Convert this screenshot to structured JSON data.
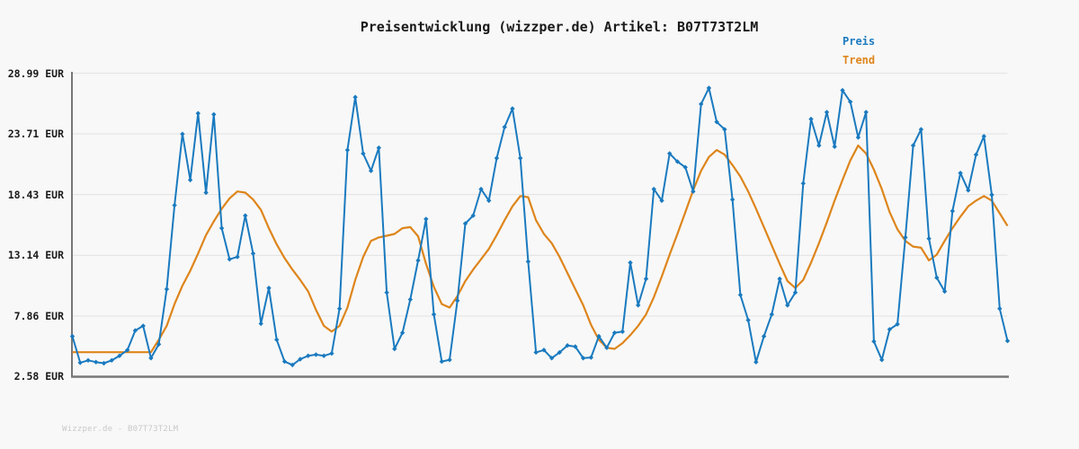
{
  "title": "Preisentwicklung (wizzper.de) Artikel: B07T73T2LM",
  "legend": {
    "preis_label": "Preis",
    "trend_label": "Trend",
    "position": "top-right"
  },
  "watermark": "Wizzper.de - B07T73T2LM",
  "colors": {
    "price_line": "#1a7abf",
    "trend_line": "#de851b",
    "axis": "#777777",
    "grid": "#e5e5e5",
    "text": "#1a1a1a",
    "watermark_text": "#c9c9c9",
    "background": "#f8f8f8"
  },
  "axis": {
    "y_tick_labels": [
      "28.99 EUR",
      "23.71 EUR",
      "18.43 EUR",
      "13.14 EUR",
      "7.86 EUR",
      "2.58 EUR"
    ],
    "y_tick_values": [
      28.99,
      23.71,
      18.43,
      13.14,
      7.86,
      2.58
    ],
    "currency": "EUR"
  },
  "chart_data": {
    "type": "line",
    "title": "Preisentwicklung (wizzper.de) Artikel: B07T73T2LM",
    "xlabel": "",
    "ylabel": "",
    "ylim": [
      2.58,
      28.99
    ],
    "y_ticks": [
      2.58,
      7.86,
      13.14,
      18.43,
      23.71,
      28.99
    ],
    "grid": "horizontal",
    "legend_position": "top-right",
    "x_axis_labels": "none (time axis unlabeled)",
    "series": [
      {
        "name": "Preis",
        "color": "#1a7abf",
        "marker": "diamond",
        "values": [
          6.1,
          3.8,
          4.0,
          3.85,
          3.75,
          4.0,
          4.4,
          4.9,
          6.6,
          7.0,
          4.2,
          5.4,
          10.2,
          17.5,
          23.7,
          19.7,
          25.5,
          18.6,
          25.4,
          15.5,
          12.8,
          13.0,
          16.6,
          13.3,
          7.2,
          10.3,
          5.8,
          3.9,
          3.6,
          4.1,
          4.4,
          4.5,
          4.4,
          4.6,
          8.5,
          22.3,
          26.9,
          22.0,
          20.5,
          22.5,
          9.9,
          5.0,
          6.4,
          9.3,
          12.7,
          16.3,
          8.0,
          3.9,
          4.05,
          9.2,
          15.9,
          16.6,
          18.9,
          17.9,
          21.6,
          24.3,
          25.9,
          21.6,
          12.6,
          4.7,
          4.9,
          4.2,
          4.7,
          5.3,
          5.2,
          4.2,
          4.25,
          6.1,
          5.1,
          6.4,
          6.5,
          12.5,
          8.8,
          11.1,
          18.9,
          17.9,
          22.0,
          21.3,
          20.8,
          18.7,
          26.3,
          27.7,
          24.75,
          24.1,
          18.0,
          9.7,
          7.5,
          3.85,
          6.1,
          8.0,
          11.1,
          8.8,
          9.9,
          19.4,
          25.0,
          22.7,
          25.6,
          22.6,
          27.5,
          26.5,
          23.4,
          25.6,
          5.65,
          4.05,
          6.7,
          7.15,
          14.7,
          22.7,
          24.1,
          14.6,
          11.2,
          10.0,
          17.0,
          20.3,
          18.8,
          21.9,
          23.5,
          18.4,
          8.5,
          5.7
        ]
      },
      {
        "name": "Trend",
        "color": "#de851b",
        "marker": "none",
        "values": [
          4.71,
          4.71,
          4.71,
          4.71,
          4.71,
          4.71,
          4.71,
          4.71,
          4.71,
          4.71,
          4.71,
          5.8,
          7.0,
          8.9,
          10.5,
          11.8,
          13.3,
          14.9,
          16.1,
          17.2,
          18.1,
          18.7,
          18.6,
          18.0,
          17.1,
          15.5,
          14.1,
          12.9,
          11.9,
          11.0,
          10.0,
          8.4,
          7.0,
          6.5,
          7.0,
          8.6,
          11.0,
          13.0,
          14.4,
          14.7,
          14.85,
          15.0,
          15.5,
          15.6,
          14.8,
          12.4,
          10.4,
          8.9,
          8.6,
          9.6,
          10.9,
          11.9,
          12.8,
          13.7,
          14.9,
          16.2,
          17.4,
          18.3,
          18.2,
          16.2,
          15.0,
          14.2,
          13.0,
          11.6,
          10.2,
          8.8,
          7.1,
          5.8,
          5.1,
          5.0,
          5.5,
          6.2,
          7.0,
          8.0,
          9.5,
          11.3,
          13.2,
          15.0,
          16.9,
          18.8,
          20.5,
          21.7,
          22.3,
          21.9,
          21.0,
          20.0,
          18.7,
          17.2,
          15.6,
          14.0,
          12.4,
          10.9,
          10.3,
          11.0,
          12.5,
          14.2,
          16.0,
          17.9,
          19.7,
          21.4,
          22.7,
          22.0,
          20.6,
          18.9,
          16.9,
          15.4,
          14.4,
          13.9,
          13.8,
          12.7,
          13.2,
          14.4,
          15.5,
          16.5,
          17.4,
          17.9,
          18.3,
          17.9,
          16.8,
          15.7
        ]
      }
    ]
  }
}
